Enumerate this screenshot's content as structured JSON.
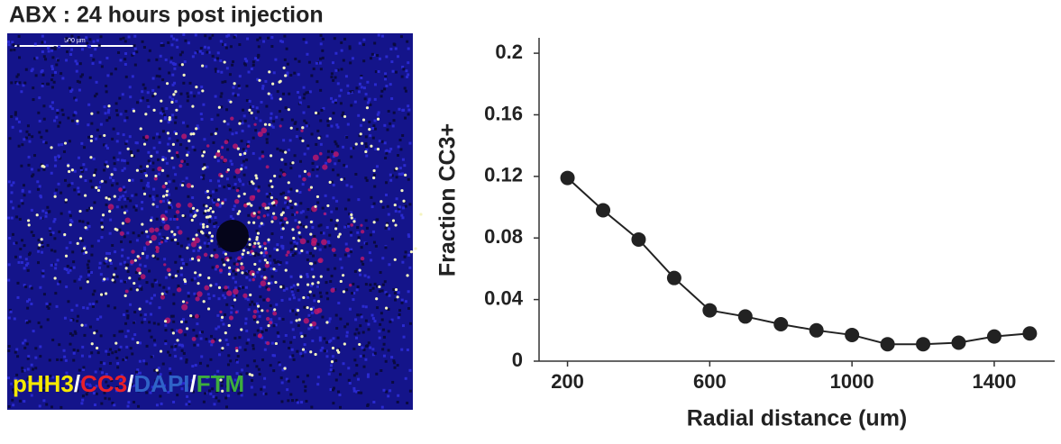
{
  "title": "ABX : 24 hours post injection",
  "image": {
    "scale_bar": "500 µm",
    "stain_labels": [
      {
        "text": "pHH3",
        "color": "#f5e900"
      },
      {
        "text": "/",
        "color": "#ffffff"
      },
      {
        "text": "CC3",
        "color": "#e8202a"
      },
      {
        "text": "/",
        "color": "#ffffff"
      },
      {
        "text": "DAPI",
        "color": "#2f63c8"
      },
      {
        "text": "/",
        "color": "#ffffff"
      },
      {
        "text": "FTM",
        "color": "#3dae3d"
      }
    ]
  },
  "chart_data": {
    "type": "line",
    "x_label": "Radial distance (um)",
    "y_label": "Fraction CC3+",
    "x": [
      200,
      300,
      400,
      500,
      600,
      700,
      800,
      900,
      1000,
      1100,
      1200,
      1300,
      1400,
      1500
    ],
    "series": [
      {
        "name": "Fraction CC3+",
        "color": "#222222",
        "values": [
          0.119,
          0.098,
          0.079,
          0.054,
          0.033,
          0.029,
          0.024,
          0.02,
          0.017,
          0.011,
          0.011,
          0.012,
          0.016,
          0.018
        ]
      }
    ],
    "xlim": [
      120,
      1570
    ],
    "xticks": [
      200,
      600,
      1000,
      1400
    ],
    "ylim": [
      0,
      0.21
    ],
    "yticks": [
      0,
      0.04,
      0.08,
      0.12,
      0.16,
      0.2
    ]
  }
}
